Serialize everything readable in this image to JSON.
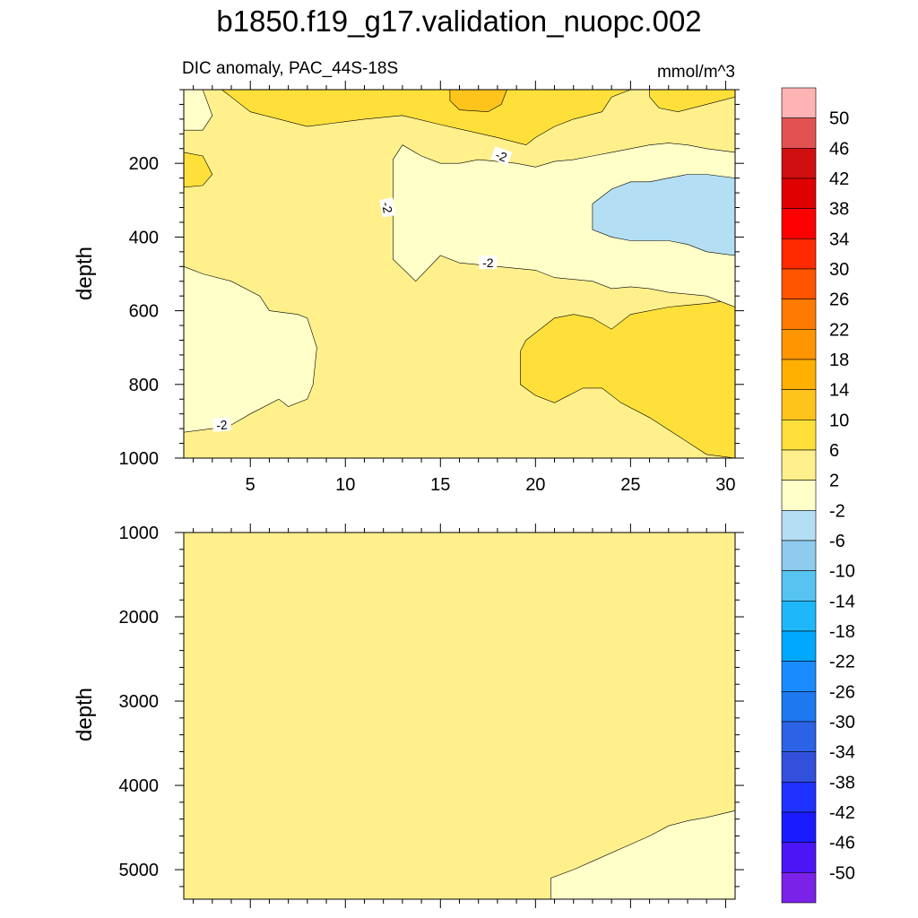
{
  "title": "b1850.f19_g17.validation_nuopc.002",
  "chart_data": {
    "type": "contour",
    "title": "b1850.f19_g17.validation_nuopc.002",
    "colorbar": {
      "levels": [
        "50",
        "46",
        "42",
        "38",
        "34",
        "30",
        "26",
        "22",
        "18",
        "14",
        "10",
        "6",
        "2",
        "-2",
        "-6",
        "-10",
        "-14",
        "-18",
        "-22",
        "-26",
        "-30",
        "-34",
        "-38",
        "-42",
        "-46",
        "-50"
      ],
      "colors": [
        "#FFB3B3",
        "#E35252",
        "#D01010",
        "#E00000",
        "#FF0000",
        "#FF2A00",
        "#FF5500",
        "#FF7A00",
        "#FF9500",
        "#FFB000",
        "#FFC41C",
        "#FFE03A",
        "#FFF08C",
        "#FFFFC8",
        "#B4DEF4",
        "#8ECBEC",
        "#56C3F0",
        "#1EB8FA",
        "#00A8FF",
        "#1A8CFF",
        "#1E78F0",
        "#2B62E6",
        "#3350DD",
        "#1F32FF",
        "#1B1BFF",
        "#4C15F5",
        "#7B22E8"
      ]
    },
    "panels": [
      {
        "subtitle": "DIC anomaly, PAC_44S-18S",
        "units": "mmol/m^3",
        "xlabel": "",
        "ylabel": "depth",
        "xlim": [
          1.5,
          30.5
        ],
        "ylim": [
          0,
          1000
        ],
        "y_inverted": true,
        "xticks": [
          5,
          10,
          15,
          20,
          25,
          30
        ],
        "yticks": [
          200,
          400,
          600,
          800,
          1000
        ],
        "background_level": "-2 to 2",
        "regions": [
          {
            "level": "2 to 6",
            "points": [
              [
                3.5,
                0
              ],
              [
                25,
                0
              ],
              [
                24,
                20
              ],
              [
                23.5,
                60
              ],
              [
                22,
                80
              ],
              [
                21,
                100
              ],
              [
                20,
                130
              ],
              [
                19.5,
                150
              ],
              [
                18,
                130
              ],
              [
                15,
                95
              ],
              [
                13,
                70
              ],
              [
                11,
                80
              ],
              [
                9.5,
                90
              ],
              [
                8,
                100
              ],
              [
                5,
                60
              ],
              [
                4,
                20
              ],
              [
                3.5,
                0
              ]
            ]
          },
          {
            "level": "2 to 6",
            "points": [
              [
                1.5,
                170
              ],
              [
                2.5,
                180
              ],
              [
                3,
                230
              ],
              [
                2.5,
                260
              ],
              [
                1.5,
                265
              ]
            ]
          },
          {
            "level": "2 to 6",
            "points": [
              [
                26,
                0
              ],
              [
                30.5,
                0
              ],
              [
                30.5,
                20
              ],
              [
                29,
                40
              ],
              [
                27.5,
                60
              ],
              [
                26.5,
                50
              ],
              [
                26,
                20
              ]
            ]
          },
          {
            "level": "2 to 6",
            "points": [
              [
                19.5,
                680
              ],
              [
                21,
                620
              ],
              [
                22,
                610
              ],
              [
                23,
                620
              ],
              [
                24,
                650
              ],
              [
                25,
                610
              ],
              [
                27,
                590
              ],
              [
                28,
                585
              ],
              [
                29,
                580
              ],
              [
                30.5,
                570
              ],
              [
                30.5,
                1000
              ],
              [
                29,
                990
              ],
              [
                27.5,
                940
              ],
              [
                26,
                890
              ],
              [
                24.5,
                850
              ],
              [
                23.5,
                810
              ],
              [
                22.5,
                810
              ],
              [
                21,
                850
              ],
              [
                20,
                830
              ],
              [
                19.2,
                800
              ],
              [
                19.2,
                710
              ]
            ]
          },
          {
            "level": "6 to 10",
            "points": [
              [
                15.5,
                0
              ],
              [
                18.5,
                0
              ],
              [
                18.2,
                40
              ],
              [
                17.5,
                60
              ],
              [
                16,
                55
              ],
              [
                15.5,
                30
              ]
            ]
          },
          {
            "level": "-6 to -2",
            "points": [
              [
                1.5,
                0
              ],
              [
                2.5,
                0
              ],
              [
                3,
                70
              ],
              [
                2.5,
                110
              ],
              [
                1.5,
                110
              ]
            ]
          },
          {
            "level": "-6 to -2",
            "points": [
              [
                12.5,
                190
              ],
              [
                13,
                150
              ],
              [
                14,
                180
              ],
              [
                15,
                200
              ],
              [
                16,
                200
              ],
              [
                17,
                190
              ],
              [
                19,
                200
              ],
              [
                20,
                210
              ],
              [
                21,
                195
              ],
              [
                22,
                190
              ],
              [
                23,
                180
              ],
              [
                24,
                170
              ],
              [
                25,
                160
              ],
              [
                26,
                150
              ],
              [
                27,
                145
              ],
              [
                28,
                150
              ],
              [
                29,
                160
              ],
              [
                30.5,
                170
              ],
              [
                30.5,
                590
              ],
              [
                29,
                560
              ],
              [
                28,
                555
              ],
              [
                27,
                550
              ],
              [
                26,
                540
              ],
              [
                25,
                535
              ],
              [
                24,
                540
              ],
              [
                23,
                520
              ],
              [
                21,
                510
              ],
              [
                20,
                490
              ],
              [
                18,
                480
              ],
              [
                16,
                470
              ],
              [
                15,
                450
              ],
              [
                13.7,
                520
              ],
              [
                12.5,
                460
              ],
              [
                12.5,
                300
              ]
            ]
          },
          {
            "level": "-10 to -6",
            "points": [
              [
                23,
                310
              ],
              [
                24,
                270
              ],
              [
                25,
                250
              ],
              [
                26,
                250
              ],
              [
                27,
                240
              ],
              [
                28,
                230
              ],
              [
                29,
                230
              ],
              [
                30.5,
                240
              ],
              [
                30.5,
                450
              ],
              [
                29,
                440
              ],
              [
                28,
                420
              ],
              [
                27,
                410
              ],
              [
                26,
                410
              ],
              [
                25,
                410
              ],
              [
                24,
                400
              ],
              [
                23,
                380
              ]
            ]
          },
          {
            "level": "-6 to -2",
            "points": [
              [
                1.5,
                480
              ],
              [
                2.5,
                500
              ],
              [
                4,
                520
              ],
              [
                5.5,
                560
              ],
              [
                6,
                600
              ],
              [
                7.5,
                610
              ],
              [
                8,
                620
              ],
              [
                8.5,
                700
              ],
              [
                8.3,
                800
              ],
              [
                8,
                840
              ],
              [
                7,
                860
              ],
              [
                6.5,
                840
              ],
              [
                5,
                880
              ],
              [
                4,
                910
              ],
              [
                3,
                920
              ],
              [
                1.5,
                930
              ]
            ]
          }
        ],
        "contour_labels": [
          {
            "text": "-2",
            "x": 18.2,
            "y": 180,
            "rotate": 20
          },
          {
            "text": "-2",
            "x": 12.2,
            "y": 320,
            "rotate": 80
          },
          {
            "text": "-2",
            "x": 17.5,
            "y": 470,
            "rotate": 0
          },
          {
            "text": "-2",
            "x": 3.5,
            "y": 910,
            "rotate": -5
          }
        ]
      },
      {
        "subtitle": "",
        "units": "",
        "xlabel": "",
        "ylabel": "depth",
        "xlim": [
          1.5,
          30.5
        ],
        "ylim": [
          1000,
          5350
        ],
        "y_inverted": true,
        "xticks": [
          5,
          10,
          15,
          20,
          25,
          30
        ],
        "xtick_labels_visible": false,
        "yticks": [
          1000,
          2000,
          3000,
          4000,
          5000
        ],
        "background_level": "-2 to 2",
        "regions": [
          {
            "level": "-6 to -2",
            "points": [
              [
                20.8,
                5350
              ],
              [
                20.8,
                5100
              ],
              [
                22,
                5000
              ],
              [
                23,
                4900
              ],
              [
                25,
                4700
              ],
              [
                26,
                4600
              ],
              [
                27,
                4480
              ],
              [
                28,
                4420
              ],
              [
                29,
                4380
              ],
              [
                30.5,
                4300
              ],
              [
                30.5,
                5350
              ]
            ]
          }
        ],
        "contour_labels": []
      }
    ]
  }
}
